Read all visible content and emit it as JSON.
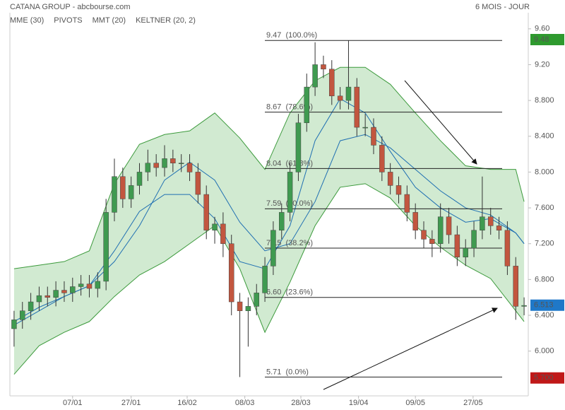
{
  "header": {
    "title": "CATANA GROUP - abcbourse.com",
    "period": "6 MOIS - JOUR"
  },
  "chart_data": {
    "type": "candlestick",
    "legend": [
      {
        "name": "MME (30)",
        "color": "#1f6fb2"
      },
      {
        "name": "PIVOTS",
        "color": "#333333"
      },
      {
        "name": "MMT (20)",
        "color": "#1f6fb2"
      },
      {
        "name": "KELTNER (20, 2)",
        "color": "#3c9a3c"
      }
    ],
    "up_color": "#3f9a50",
    "down_color": "#c2563f",
    "open": [
      6.25,
      6.35,
      6.45,
      6.55,
      6.62,
      6.6,
      6.68,
      6.65,
      6.72,
      6.75,
      6.7,
      6.78,
      7.55,
      7.95,
      7.7,
      7.85,
      8.0,
      8.1,
      8.05,
      8.15,
      8.1,
      8.1,
      8.0,
      7.75,
      7.35,
      7.42,
      7.2,
      6.55,
      6.45,
      6.5,
      6.65,
      6.95,
      7.35,
      7.55,
      8.0,
      8.55,
      8.95,
      9.2,
      9.15,
      8.85,
      8.8,
      8.95,
      8.5,
      8.5,
      8.3,
      8.0,
      7.85,
      7.75,
      7.55,
      7.35,
      7.25,
      7.2,
      7.5,
      7.3,
      7.05,
      7.15,
      7.35,
      7.5,
      7.4,
      7.35,
      6.95,
      6.5
    ],
    "high": [
      6.45,
      6.55,
      6.65,
      6.72,
      6.72,
      6.78,
      6.78,
      6.82,
      6.85,
      6.85,
      6.88,
      7.7,
      8.15,
      8.05,
      7.95,
      8.1,
      8.25,
      8.2,
      8.3,
      8.25,
      8.2,
      8.2,
      8.1,
      7.85,
      7.5,
      7.55,
      7.3,
      6.65,
      6.6,
      6.75,
      7.05,
      7.45,
      7.65,
      8.1,
      8.65,
      9.1,
      9.45,
      9.3,
      9.25,
      8.95,
      9.47,
      9.05,
      8.65,
      8.6,
      8.4,
      8.1,
      7.95,
      7.85,
      7.65,
      7.45,
      7.35,
      7.65,
      7.6,
      7.4,
      7.25,
      7.45,
      7.95,
      7.6,
      7.5,
      7.45,
      7.05,
      6.6
    ],
    "low": [
      6.05,
      6.25,
      6.35,
      6.45,
      6.5,
      6.5,
      6.55,
      6.55,
      6.62,
      6.6,
      6.6,
      6.68,
      7.45,
      7.6,
      7.6,
      7.75,
      7.9,
      7.95,
      7.95,
      8.0,
      8.0,
      7.9,
      7.65,
      7.25,
      7.2,
      7.05,
      6.4,
      5.71,
      6.05,
      6.4,
      6.55,
      6.85,
      7.25,
      7.45,
      7.9,
      8.45,
      8.85,
      9.05,
      8.75,
      8.7,
      8.7,
      8.4,
      8.4,
      8.2,
      7.9,
      7.75,
      7.65,
      7.45,
      7.25,
      7.15,
      7.05,
      7.1,
      7.2,
      6.95,
      6.95,
      7.05,
      7.25,
      7.3,
      7.25,
      6.85,
      6.35,
      6.4
    ],
    "close": [
      6.35,
      6.45,
      6.55,
      6.62,
      6.6,
      6.68,
      6.65,
      6.72,
      6.75,
      6.7,
      6.78,
      7.55,
      7.95,
      7.7,
      7.85,
      8.0,
      8.1,
      8.05,
      8.15,
      8.1,
      8.1,
      8.0,
      7.75,
      7.35,
      7.42,
      7.2,
      6.55,
      6.45,
      6.5,
      6.65,
      6.95,
      7.35,
      7.55,
      8.0,
      8.55,
      8.95,
      9.2,
      9.15,
      8.85,
      8.8,
      8.95,
      8.5,
      8.5,
      8.3,
      8.0,
      7.85,
      7.75,
      7.55,
      7.35,
      7.25,
      7.2,
      7.5,
      7.3,
      7.05,
      7.15,
      7.35,
      7.5,
      7.4,
      7.35,
      6.95,
      6.5,
      6.51
    ],
    "overlay_x": [
      0,
      3,
      6,
      9,
      12,
      15,
      18,
      21,
      24,
      27,
      30,
      33,
      36,
      39,
      42,
      45,
      48,
      51,
      54,
      57,
      60,
      61
    ],
    "keltner_upper": [
      6.92,
      6.96,
      7.0,
      7.12,
      7.87,
      8.31,
      8.42,
      8.46,
      8.66,
      8.38,
      8.03,
      8.66,
      9.02,
      9.17,
      9.17,
      8.98,
      8.66,
      8.35,
      8.07,
      8.03,
      8.03,
      7.67
    ],
    "keltner_lower": [
      5.74,
      6.06,
      6.21,
      6.33,
      6.61,
      6.85,
      7.0,
      7.2,
      7.4,
      6.92,
      6.21,
      6.77,
      7.4,
      7.83,
      7.87,
      7.71,
      7.4,
      7.16,
      6.96,
      6.81,
      6.45,
      6.33
    ],
    "mme": [
      6.29,
      6.45,
      6.61,
      6.73,
      7.0,
      7.4,
      7.91,
      8.11,
      7.91,
      7.44,
      7.12,
      7.2,
      7.67,
      8.35,
      8.42,
      8.27,
      8.03,
      7.79,
      7.6,
      7.52,
      7.32,
      7.2
    ],
    "mmt": [
      6.33,
      6.49,
      6.61,
      6.73,
      7.12,
      7.56,
      7.75,
      7.75,
      7.48,
      7.0,
      6.92,
      7.4,
      8.35,
      8.82,
      8.66,
      8.23,
      7.83,
      7.6,
      7.44,
      7.48,
      7.32,
      7.2
    ],
    "fib_levels": [
      {
        "value": 9.47,
        "label": "9.47  (100.0%)"
      },
      {
        "value": 8.67,
        "label": "8.67  (78.6%)"
      },
      {
        "value": 8.04,
        "label": "8.04  (61.8%)"
      },
      {
        "value": 7.59,
        "label": "7.59  (50.0%)"
      },
      {
        "value": 7.15,
        "label": "7.15  (38.2%)"
      },
      {
        "value": 6.6,
        "label": "6.60  (23.6%)"
      },
      {
        "value": 5.71,
        "label": "5.71  (0.0%)"
      }
    ],
    "price_tags": [
      {
        "value": 9.48,
        "label": "9.48",
        "color": "#2e9a2e"
      },
      {
        "value": 6.513,
        "label": "6.513",
        "color": "#1f78c8"
      },
      {
        "value": 5.7,
        "label": "5.700",
        "color": "#c01818"
      }
    ],
    "xlim": [
      -0.5,
      61.5
    ],
    "xticks": [
      {
        "value": 7,
        "label": "07/01"
      },
      {
        "value": 14,
        "label": "27/01"
      },
      {
        "value": 20.7,
        "label": "16/02"
      },
      {
        "value": 27.6,
        "label": "08/03"
      },
      {
        "value": 34.3,
        "label": "28/03"
      },
      {
        "value": 41.2,
        "label": "19/04"
      },
      {
        "value": 48,
        "label": "09/05"
      },
      {
        "value": 54.9,
        "label": "27/05"
      }
    ],
    "ylim": [
      5.5,
      9.78
    ],
    "yticks": [
      {
        "value": 9.6,
        "label": "9.60"
      },
      {
        "value": 9.2,
        "label": "9.20"
      },
      {
        "value": 8.8,
        "label": "8.800"
      },
      {
        "value": 8.4,
        "label": "8.400"
      },
      {
        "value": 8,
        "label": "8.000"
      },
      {
        "value": 7.6,
        "label": "7.600"
      },
      {
        "value": 7.2,
        "label": "7.200"
      },
      {
        "value": 6.8,
        "label": "6.800"
      },
      {
        "value": 6.4,
        "label": "6.400"
      },
      {
        "value": 6,
        "label": "6.000"
      }
    ]
  }
}
